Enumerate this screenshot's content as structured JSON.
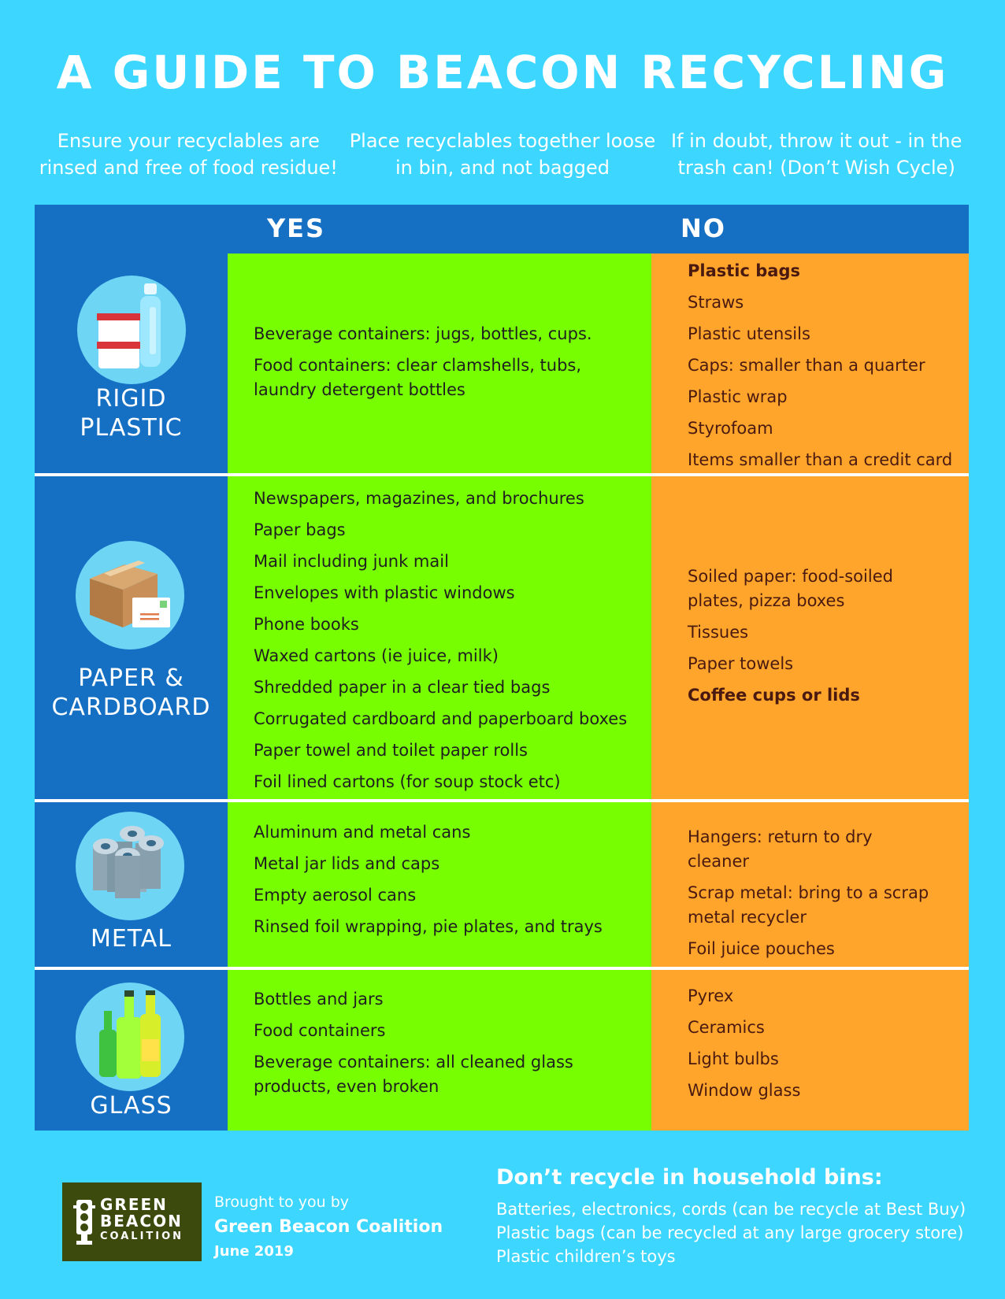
{
  "title": "A GUIDE TO BEACON RECYCLING",
  "tips": [
    "Ensure your recyclables are rinsed and free of food residue!",
    "Place recyclables together loose in bin, and not bagged",
    "If in doubt, throw it out - in the trash can! (Don’t Wish Cycle)"
  ],
  "table": {
    "yes_header": "YES",
    "no_header": "NO",
    "rows": [
      {
        "category": "RIGID PLASTIC",
        "icon": "plastic-containers-icon",
        "yes": [
          "Beverage containers: jugs, bottles, cups.",
          "Food containers: clear clamshells, tubs, laundry detergent bottles"
        ],
        "no": [
          "Plastic bags",
          "Straws",
          "Plastic utensils",
          "Caps: smaller than a quarter",
          "Plastic wrap",
          "Styrofoam",
          "Items smaller than a credit card"
        ]
      },
      {
        "category": "PAPER & CARDBOARD",
        "icon": "cardboard-box-icon",
        "yes": [
          "Newspapers, magazines, and brochures",
          "Paper bags",
          "Mail including junk mail",
          "Envelopes with plastic windows",
          "Phone books",
          "Waxed cartons (ie juice, milk)",
          "Shredded paper in a clear tied bags",
          "Corrugated cardboard and paperboard boxes",
          "Paper towel and toilet paper rolls",
          "Foil lined cartons (for soup stock etc)"
        ],
        "no": [
          "Soiled paper: food-soiled plates, pizza boxes",
          "Tissues",
          "Paper towels",
          "Coffee cups or lids"
        ]
      },
      {
        "category": "METAL",
        "icon": "metal-cans-icon",
        "yes": [
          "Aluminum and metal cans",
          "Metal jar lids and caps",
          "Empty aerosol cans",
          "Rinsed foil wrapping, pie plates, and trays"
        ],
        "no": [
          "Hangers: return to dry cleaner",
          "Scrap metal: bring to a scrap metal recycler",
          "Foil juice pouches"
        ]
      },
      {
        "category": "GLASS",
        "icon": "glass-bottles-icon",
        "yes": [
          "Bottles and jars",
          "Food containers",
          "Beverage containers: all cleaned glass products, even broken"
        ],
        "no": [
          "Pyrex",
          "Ceramics",
          "Light bulbs",
          "Window glass"
        ]
      }
    ]
  },
  "footer": {
    "logo_line1": "GREEN",
    "logo_line2": "BEACON",
    "logo_line3": "COALITION",
    "brought_by": "Brought to you by",
    "org": "Green Beacon Coalition",
    "date": "June 2019",
    "dont_title": "Don’t recycle in household bins:",
    "dont_items": [
      "Batteries, electronics, cords (can be recycle at Best Buy)",
      "Plastic bags (can be recycled at any large grocery store)",
      "Plastic children’s toys"
    ]
  },
  "colors": {
    "background": "#3cd6ff",
    "header_blue": "#1570c4",
    "yes_green": "#77ff01",
    "no_orange": "#ffa52b",
    "logo_bg": "#3d4a0e"
  }
}
